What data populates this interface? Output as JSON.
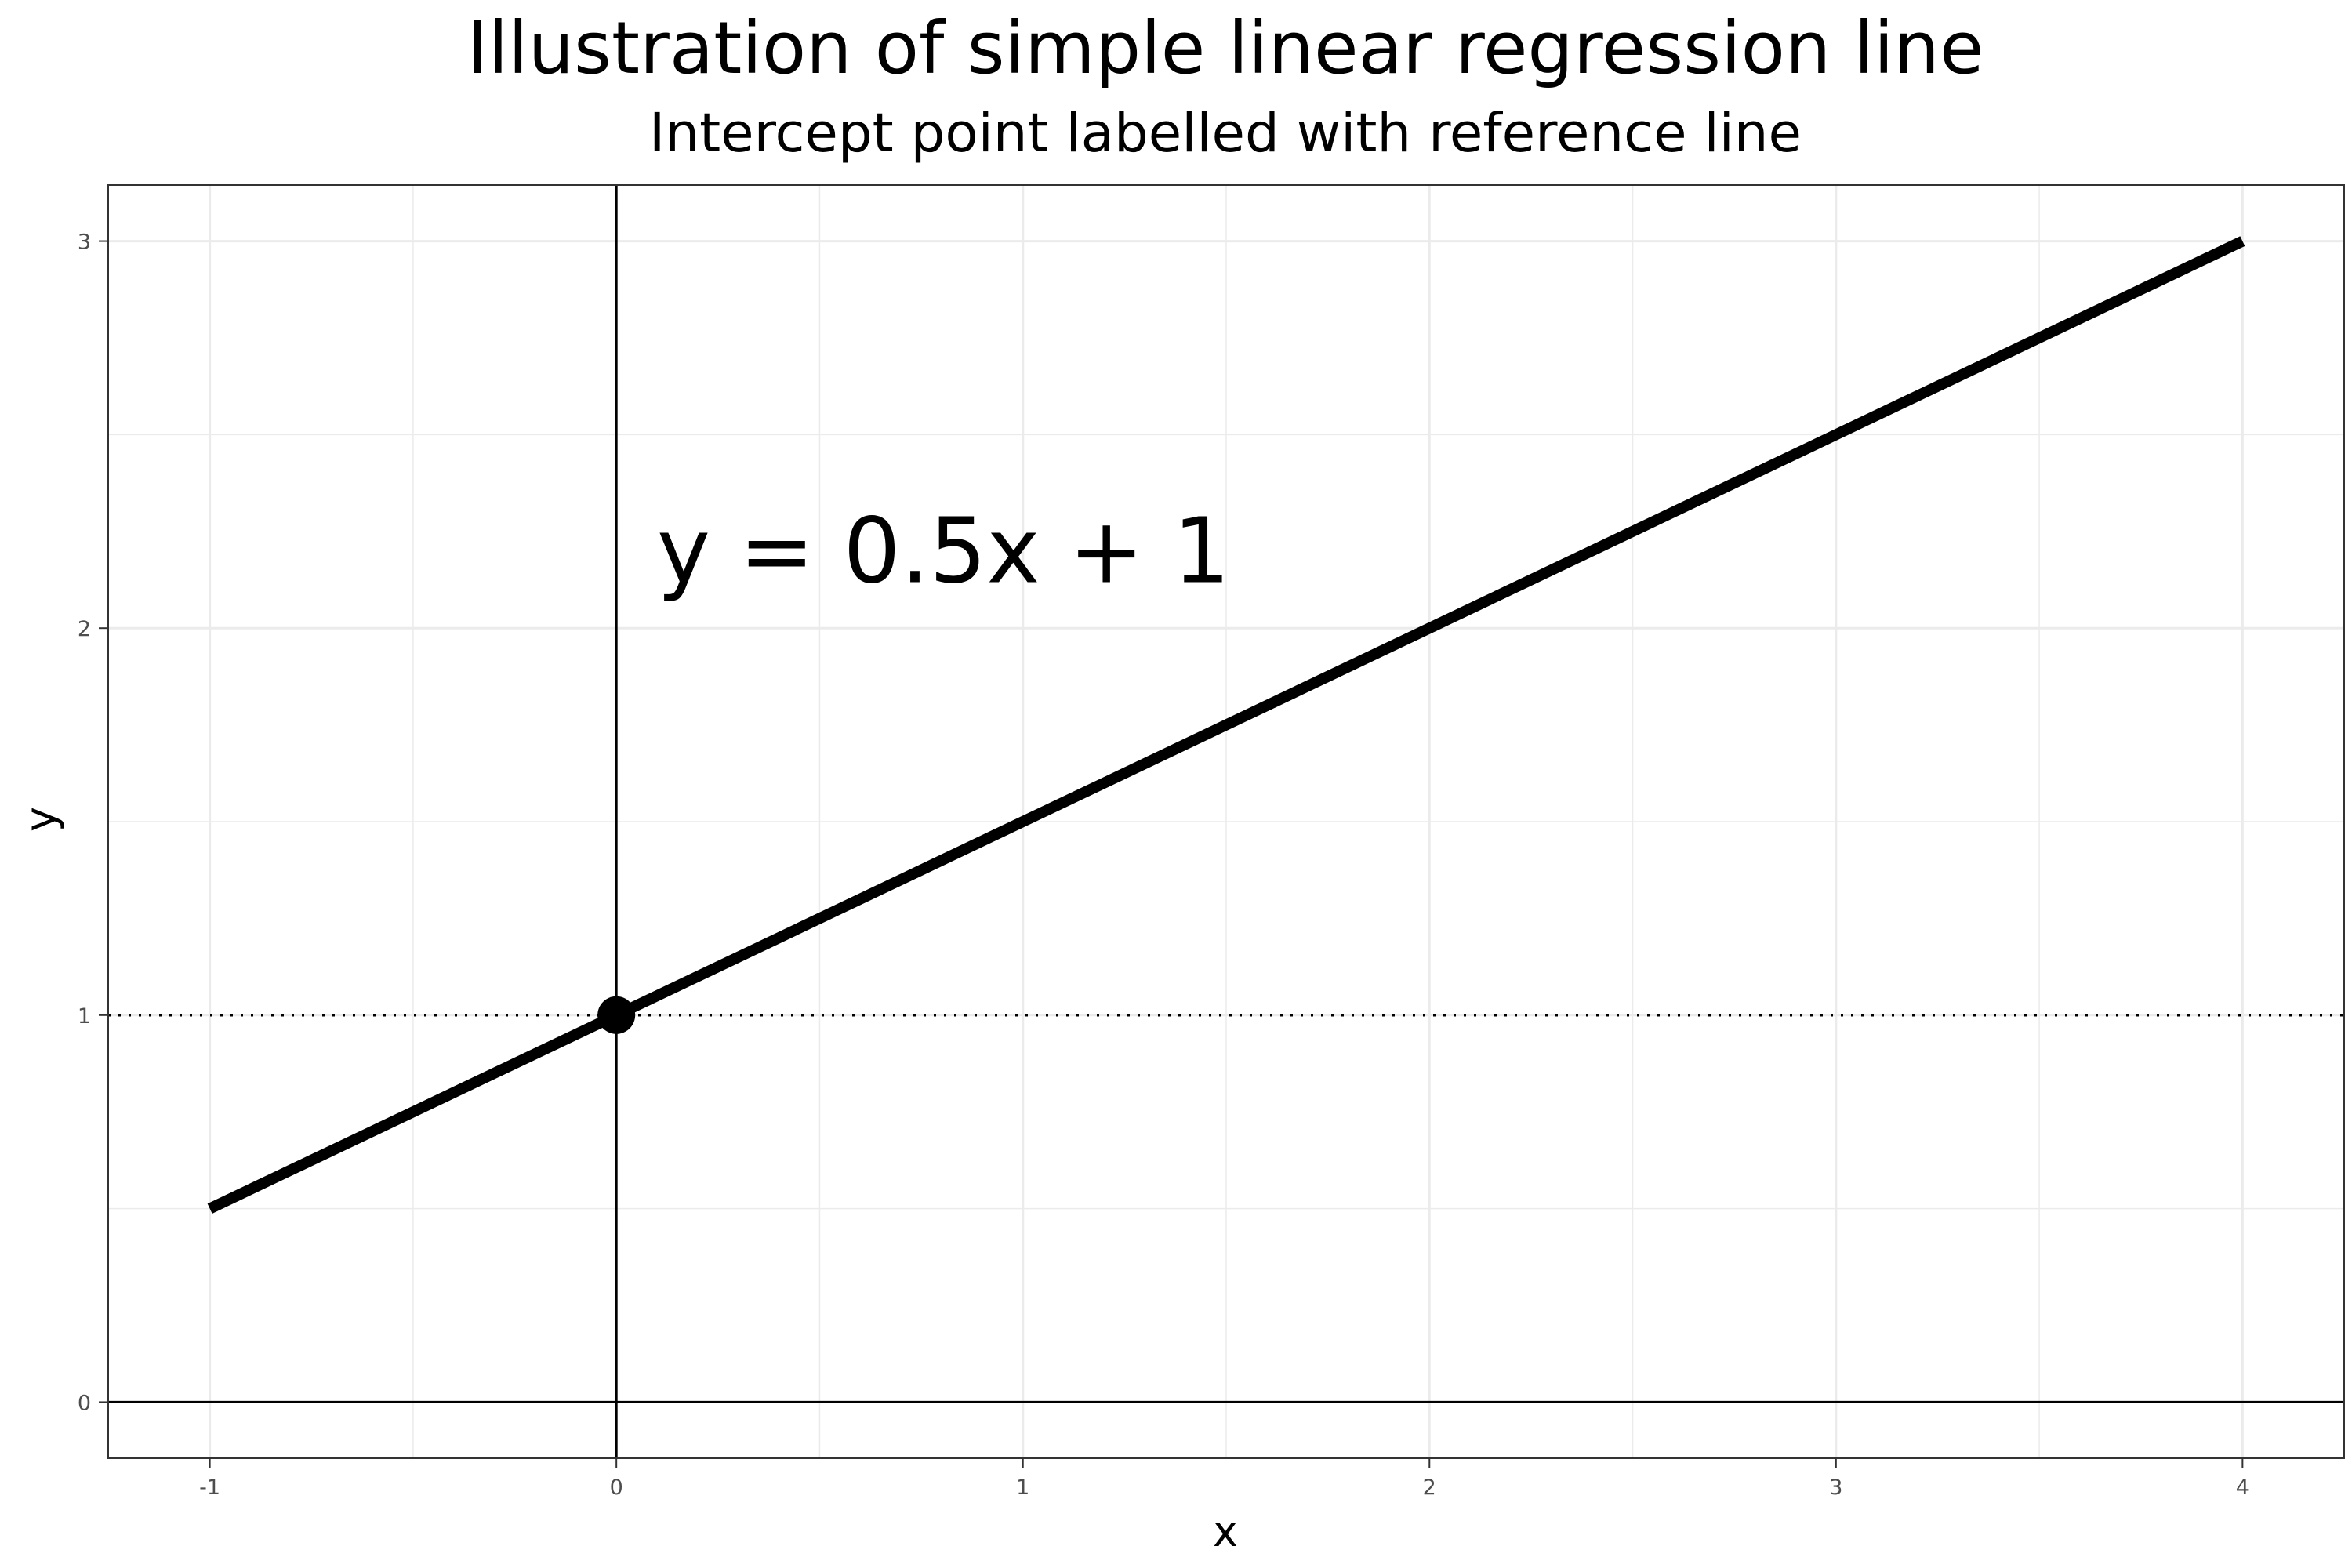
{
  "chart_data": {
    "type": "line",
    "title": "Illustration of simple linear regression line",
    "subtitle": "Intercept point labelled with reference line",
    "xlabel": "x",
    "ylabel": "y",
    "xlim": [
      -1.25,
      4.25
    ],
    "ylim": [
      -0.145,
      3.145
    ],
    "x_ticks": [
      -1,
      0,
      1,
      2,
      3,
      4
    ],
    "y_ticks": [
      0,
      1,
      2,
      3
    ],
    "grid": true,
    "series": [
      {
        "x": [
          -1,
          4
        ],
        "y": [
          0.5,
          3
        ]
      }
    ],
    "intercept_point": {
      "x": 0,
      "y": 1
    },
    "reference_lines": {
      "horizontal_solid": 0,
      "vertical_solid": 0,
      "horizontal_dotted": 1
    },
    "annotation": {
      "text": "y = 0.5x + 1",
      "x": 0.1,
      "y": 2.2
    },
    "colors": {
      "line": "#000000",
      "grid": "#ebebeb",
      "panel_border": "#333333",
      "tick_text": "#4d4d4d"
    }
  }
}
